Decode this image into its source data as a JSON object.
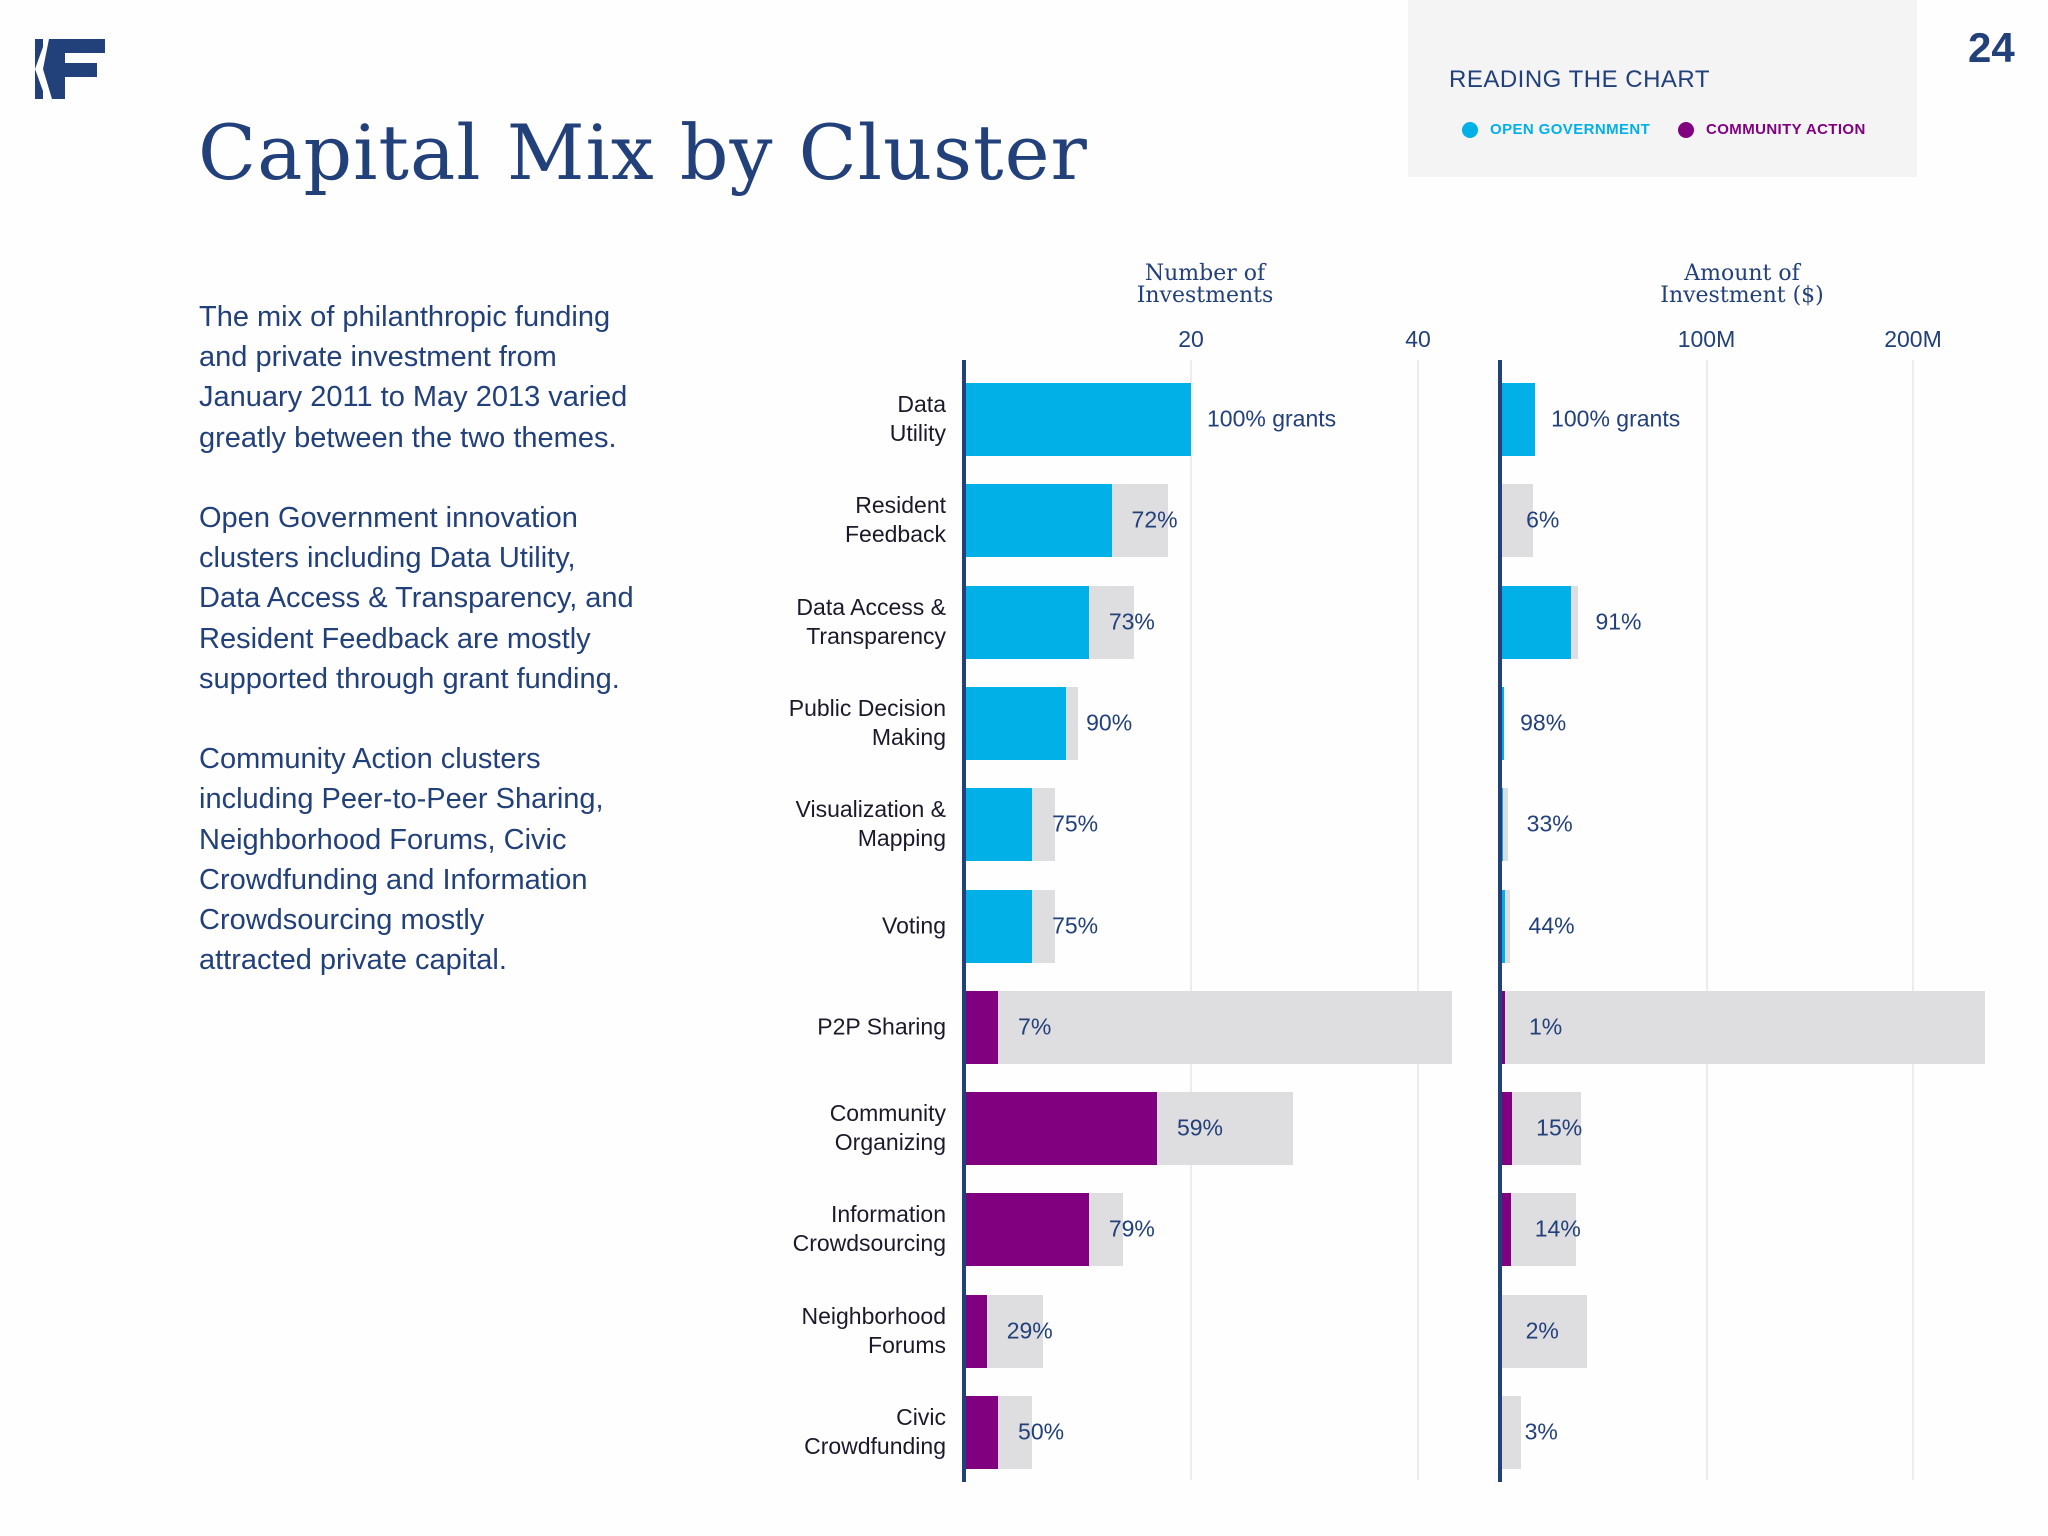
{
  "logo": {
    "text": "KF"
  },
  "page_number": "24",
  "title": "Capital Mix by Cluster",
  "legend": {
    "title": "READING THE CHART",
    "items": [
      {
        "label": "OPEN GOVERNMENT",
        "color": "#00b0e6"
      },
      {
        "label": "COMMUNITY ACTION",
        "color": "#800080"
      }
    ]
  },
  "body": {
    "paragraphs": [
      "The mix of philanthropic funding\nand private investment from\nJanuary 2011 to May 2013 varied\ngreatly between the two themes.",
      "Open Government innovation\nclusters including Data Utility,\nData Access & Transparency, and\nResident Feedback are mostly\nsupported through grant funding.",
      "Community Action clusters\nincluding Peer-to-Peer Sharing,\nNeighborhood Forums, Civic\nCrowdfunding and Information\nCrowdsourcing mostly\nattracted private capital."
    ]
  },
  "colors": {
    "open_government": "#00b0e6",
    "community_action": "#800080",
    "remainder": "#dedddf",
    "axis": "#22407a"
  },
  "chart_data": [
    {
      "type": "bar",
      "orientation": "horizontal",
      "stacked": true,
      "title": "Number of\nInvestments",
      "xlim": [
        0,
        43
      ],
      "ticks": [
        20,
        40
      ],
      "tick_labels": [
        "20",
        "40"
      ],
      "grid": true,
      "categories": [
        "Data\nUtility",
        "Resident\nFeedback",
        "Data Access &\nTransparency",
        "Public Decision\nMaking",
        "Visualization &\nMapping",
        "Voting",
        "P2P Sharing",
        "Community\nOrganizing",
        "Information\nCrowdsourcing",
        "Neighborhood\nForums",
        "Civic\nCrowdfunding"
      ],
      "theme": [
        "open",
        "open",
        "open",
        "open",
        "open",
        "open",
        "community",
        "community",
        "community",
        "community",
        "community"
      ],
      "grant_values": [
        20,
        13,
        11,
        9,
        6,
        6,
        3,
        17,
        11,
        2,
        3
      ],
      "total_values": [
        20,
        18,
        15,
        10,
        8,
        8,
        43,
        29,
        14,
        7,
        6
      ],
      "labels": [
        "100% grants",
        "72%",
        "73%",
        "90%",
        "75%",
        "75%",
        "7%",
        "59%",
        "79%",
        "29%",
        "50%"
      ]
    },
    {
      "type": "bar",
      "orientation": "horizontal",
      "stacked": true,
      "title": "Amount of\nInvestment ($)",
      "unit": "$M",
      "xlim": [
        0,
        235
      ],
      "ticks": [
        100,
        200
      ],
      "tick_labels": [
        "100M",
        "200M"
      ],
      "grid": true,
      "categories": [
        "Data Utility",
        "Resident Feedback",
        "Data Access & Transparency",
        "Public Decision Making",
        "Visualization & Mapping",
        "Voting",
        "P2P Sharing",
        "Community Organizing",
        "Information Crowdsourcing",
        "Neighborhood Forums",
        "Civic Crowdfunding"
      ],
      "theme": [
        "open",
        "open",
        "open",
        "open",
        "open",
        "open",
        "community",
        "community",
        "community",
        "community",
        "community"
      ],
      "grant_values": [
        17,
        1,
        34.6,
        2,
        1.3,
        2.2,
        2.4,
        5.9,
        5.2,
        0.8,
        0.3
      ],
      "total_values": [
        17,
        16,
        38,
        2,
        4,
        5,
        235,
        39,
        37,
        42,
        10
      ],
      "labels": [
        "100% grants",
        "6%",
        "91%",
        "98%",
        "33%",
        "44%",
        "1%",
        "15%",
        "14%",
        "2%",
        "3%"
      ]
    }
  ]
}
